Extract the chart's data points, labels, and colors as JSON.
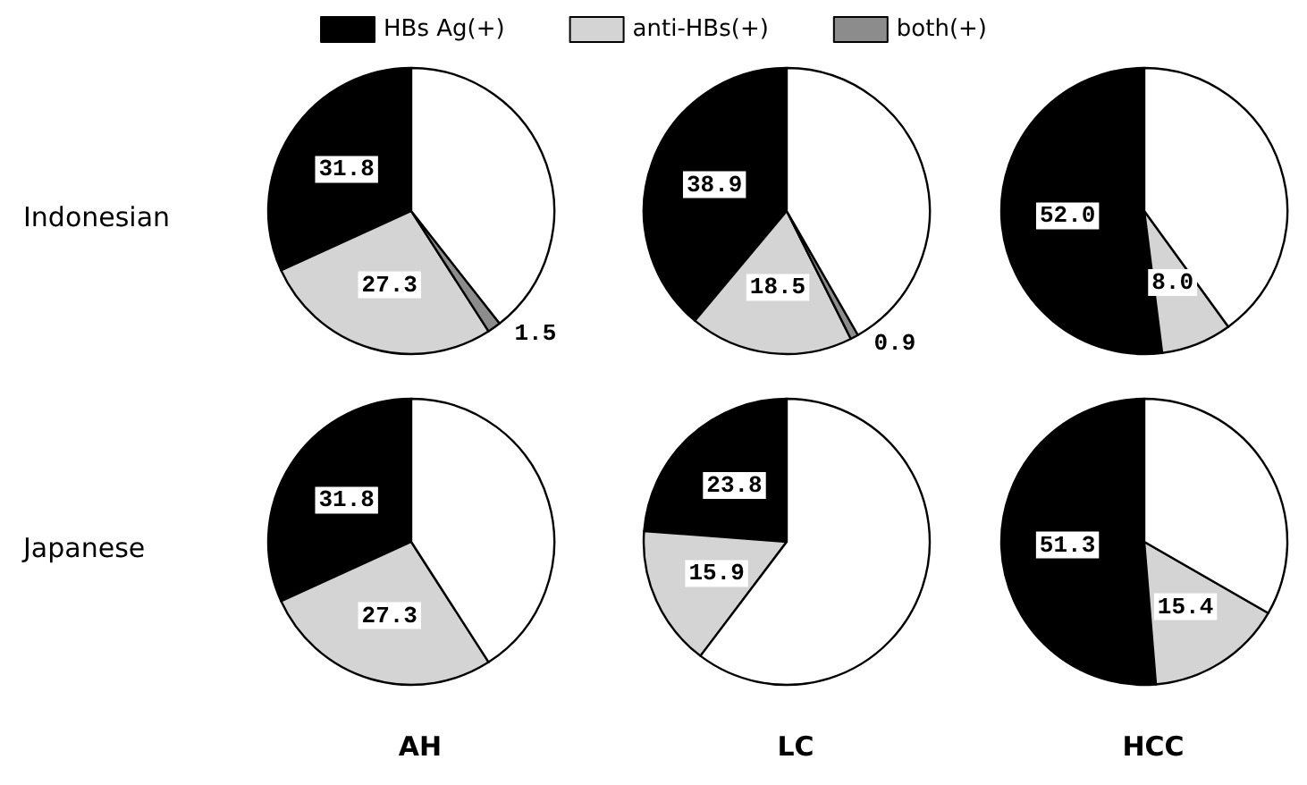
{
  "chart_data": [
    {
      "type": "pie",
      "ylabel": "Indonesian",
      "legend": "top",
      "categories": [
        "HBs Ag(+)",
        "anti-HBs(+)",
        "both(+)",
        null
      ],
      "values": [
        31.8,
        27.3,
        1.5,
        39.4
      ],
      "colors": [
        "#000000",
        "#d4d4d4",
        "#8c8c8c",
        "#ffffff"
      ],
      "value_labels": [
        "31.8",
        "27.3",
        "1.5",
        null
      ]
    },
    {
      "type": "pie",
      "categories": [
        null,
        null,
        null,
        null
      ],
      "values": [
        38.9,
        18.5,
        0.9,
        41.7
      ],
      "colors": [
        "#000000",
        "#d4d4d4",
        "#8c8c8c",
        "#ffffff"
      ],
      "value_labels": [
        "38.9",
        "18.5",
        "0.9",
        null
      ]
    },
    {
      "type": "pie",
      "categories": [
        null,
        null,
        null
      ],
      "values": [
        52.0,
        8.0,
        40.0
      ],
      "colors": [
        "#000000",
        "#d4d4d4",
        "#ffffff"
      ],
      "value_labels": [
        "52.0",
        "8.0",
        null
      ]
    },
    {
      "type": "pie",
      "ylabel": "Japanese",
      "xlabel": "AH",
      "categories": [
        null,
        null,
        null
      ],
      "values": [
        31.8,
        27.3,
        40.9
      ],
      "colors": [
        "#000000",
        "#d4d4d4",
        "#ffffff"
      ],
      "value_labels": [
        "31.8",
        "27.3",
        null
      ]
    },
    {
      "type": "pie",
      "xlabel": "LC",
      "categories": [
        null,
        null,
        null
      ],
      "values": [
        23.8,
        15.9,
        60.3
      ],
      "colors": [
        "#000000",
        "#d4d4d4",
        "#ffffff"
      ],
      "value_labels": [
        "23.8",
        "15.9",
        null
      ]
    },
    {
      "type": "pie",
      "xlabel": "HCC",
      "categories": [
        null,
        null,
        null
      ],
      "values": [
        51.3,
        15.4,
        33.3
      ],
      "colors": [
        "#000000",
        "#d4d4d4",
        "#ffffff"
      ],
      "value_labels": [
        "51.3",
        "15.4",
        null
      ]
    }
  ]
}
